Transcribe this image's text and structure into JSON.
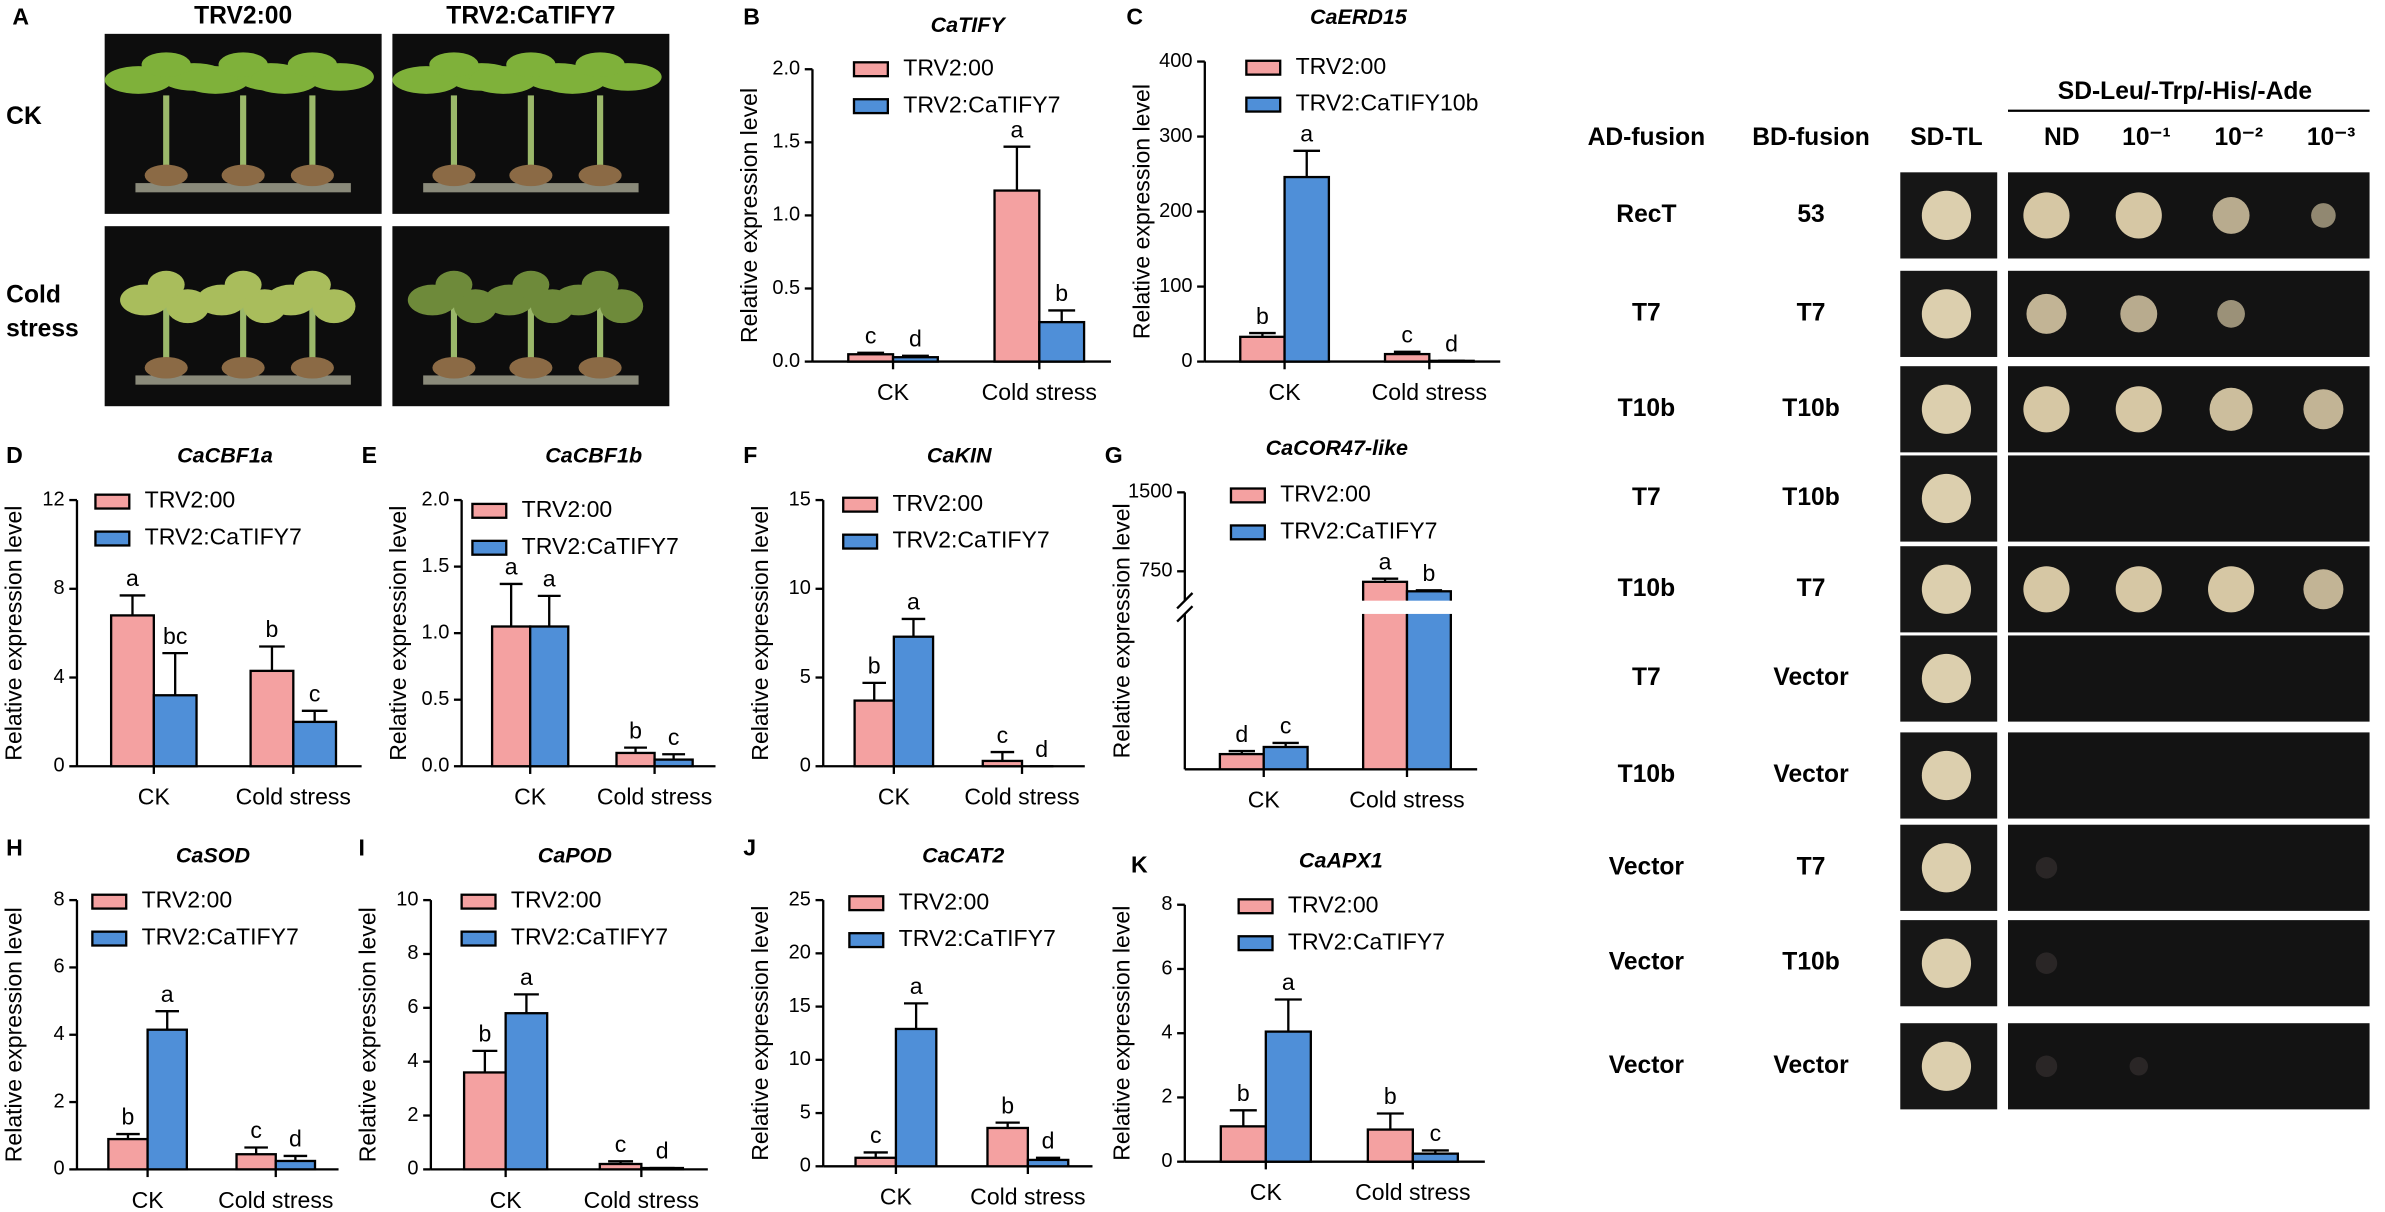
{
  "panel_a": {
    "label": "A",
    "columns": [
      "TRV2:00",
      "TRV2:CaTIFY7"
    ],
    "rows": [
      "CK",
      "Cold stress"
    ]
  },
  "y2h": {
    "selection_header": "SD-Leu/-Trp/-His/-Ade",
    "columns": [
      "AD-fusion",
      "BD-fusion",
      "SD-TL",
      "ND",
      "10⁻¹",
      "10⁻²",
      "10⁻³"
    ],
    "rows": [
      [
        "RecT",
        "53"
      ],
      [
        "T7",
        "T7"
      ],
      [
        "T10b",
        "T10b"
      ],
      [
        "T7",
        "T10b"
      ],
      [
        "T10b",
        "T7"
      ],
      [
        "T7",
        "Vector"
      ],
      [
        "T10b",
        "Vector"
      ],
      [
        "Vector",
        "T7"
      ],
      [
        "Vector",
        "T10b"
      ],
      [
        "Vector",
        "Vector"
      ]
    ]
  },
  "chart_data": [
    {
      "type": "bar",
      "panel_label": "B",
      "title": "CaTIFY",
      "y_label": "Relative expression level",
      "categories": [
        "CK",
        "Cold stress"
      ],
      "series": [
        {
          "name": "TRV2:00",
          "color": "#f4a1a1",
          "values": [
            0.05,
            1.17
          ],
          "errors": [
            0.01,
            0.3
          ],
          "letters": [
            "c",
            "a"
          ]
        },
        {
          "name": "TRV2:CaTIFY7",
          "color": "#4f8fd8",
          "values": [
            0.03,
            0.27
          ],
          "errors": [
            0.01,
            0.08
          ],
          "letters": [
            "d",
            "b"
          ]
        }
      ],
      "ylim": [
        0,
        2
      ],
      "yticks": [
        {
          "value": 0,
          "label": "0.0"
        },
        0.5,
        {
          "value": 1,
          "label": "1.0"
        },
        1.5,
        {
          "value": 2,
          "label": "2.0"
        }
      ]
    },
    {
      "type": "bar",
      "panel_label": "C",
      "title": "CaERD15",
      "y_label": "Relative expression level",
      "categories": [
        "CK",
        "Cold stress"
      ],
      "series": [
        {
          "name": "TRV2:00",
          "color": "#f4a1a1",
          "values": [
            33,
            10
          ],
          "errors": [
            5,
            3
          ],
          "letters": [
            "b",
            "c"
          ]
        },
        {
          "name": "TRV2:CaTIFY10b",
          "color": "#4f8fd8",
          "values": [
            246,
            1
          ],
          "errors": [
            35,
            0
          ],
          "letters": [
            "a",
            "d"
          ]
        }
      ],
      "ylim": [
        0,
        400
      ],
      "yticks": [
        0,
        100,
        200,
        300,
        400
      ]
    },
    {
      "type": "bar",
      "panel_label": "D",
      "title": "CaCBF1a",
      "y_label": "Relative expression level",
      "categories": [
        "CK",
        "Cold stress"
      ],
      "series": [
        {
          "name": "TRV2:00",
          "color": "#f4a1a1",
          "values": [
            6.8,
            4.3
          ],
          "errors": [
            0.9,
            1.1
          ],
          "letters": [
            "a",
            "b"
          ]
        },
        {
          "name": "TRV2:CaTIFY7",
          "color": "#4f8fd8",
          "values": [
            3.2,
            2.0
          ],
          "errors": [
            1.9,
            0.5
          ],
          "letters": [
            "bc",
            "c"
          ]
        }
      ],
      "ylim": [
        0,
        12
      ],
      "yticks": [
        0,
        4,
        8,
        12
      ]
    },
    {
      "type": "bar",
      "panel_label": "E",
      "title": "CaCBF1b",
      "y_label": "Relative expression level",
      "categories": [
        "CK",
        "Cold stress"
      ],
      "series": [
        {
          "name": "TRV2:00",
          "color": "#f4a1a1",
          "values": [
            1.05,
            0.1
          ],
          "errors": [
            0.32,
            0.04
          ],
          "letters": [
            "a",
            "b"
          ]
        },
        {
          "name": "TRV2:CaTIFY7",
          "color": "#4f8fd8",
          "values": [
            1.05,
            0.05
          ],
          "errors": [
            0.23,
            0.04
          ],
          "letters": [
            "a",
            "c"
          ]
        }
      ],
      "ylim": [
        0,
        2
      ],
      "yticks": [
        {
          "value": 0,
          "label": "0.0"
        },
        0.5,
        {
          "value": 1,
          "label": "1.0"
        },
        1.5,
        {
          "value": 2,
          "label": "2.0"
        }
      ]
    },
    {
      "type": "bar",
      "panel_label": "F",
      "title": "CaKIN",
      "y_label": "Relative expression level",
      "categories": [
        "CK",
        "Cold stress"
      ],
      "series": [
        {
          "name": "TRV2:00",
          "color": "#f4a1a1",
          "values": [
            3.7,
            0.3
          ],
          "errors": [
            1.0,
            0.5
          ],
          "letters": [
            "b",
            "c"
          ]
        },
        {
          "name": "TRV2:CaTIFY7",
          "color": "#4f8fd8",
          "values": [
            7.3,
            0
          ],
          "errors": [
            1.0,
            0
          ],
          "letters": [
            "a",
            "d"
          ]
        }
      ],
      "ylim": [
        0,
        15
      ],
      "yticks": [
        0,
        5,
        10,
        15
      ]
    },
    {
      "type": "bar",
      "panel_label": "G",
      "title": "CaCOR47-like",
      "y_label": "Relative expression level",
      "categories": [
        "CK",
        "Cold stress"
      ],
      "series": [
        {
          "name": "TRV2:00",
          "color": "#f4a1a1",
          "values": [
            15,
            650
          ],
          "errors": [
            3,
            30
          ],
          "letters": [
            "d",
            "a"
          ]
        },
        {
          "name": "TRV2:CaTIFY7",
          "color": "#4f8fd8",
          "values": [
            22,
            560
          ],
          "errors": [
            4,
            10
          ],
          "letters": [
            "c",
            "b"
          ]
        }
      ],
      "ylim": [
        0,
        1500
      ],
      "yticks": [
        750,
        1500
      ],
      "axis_break": [
        150,
        500
      ]
    },
    {
      "type": "bar",
      "panel_label": "H",
      "title": "CaSOD",
      "y_label": "Relative expression level",
      "categories": [
        "CK",
        "Cold stress"
      ],
      "series": [
        {
          "name": "TRV2:00",
          "color": "#f4a1a1",
          "values": [
            0.9,
            0.45
          ],
          "errors": [
            0.15,
            0.2
          ],
          "letters": [
            "b",
            "c"
          ]
        },
        {
          "name": "TRV2:CaTIFY7",
          "color": "#4f8fd8",
          "values": [
            4.15,
            0.25
          ],
          "errors": [
            0.55,
            0.15
          ],
          "letters": [
            "a",
            "d"
          ]
        }
      ],
      "ylim": [
        0,
        8
      ],
      "yticks": [
        0,
        2,
        4,
        6,
        8
      ]
    },
    {
      "type": "bar",
      "panel_label": "I",
      "title": "CaPOD",
      "y_label": "Relative expression level",
      "categories": [
        "CK",
        "Cold stress"
      ],
      "series": [
        {
          "name": "TRV2:00",
          "color": "#f4a1a1",
          "values": [
            3.6,
            0.2
          ],
          "errors": [
            0.8,
            0.1
          ],
          "letters": [
            "b",
            "c"
          ]
        },
        {
          "name": "TRV2:CaTIFY7",
          "color": "#4f8fd8",
          "values": [
            5.8,
            0.05
          ],
          "errors": [
            0.7,
            0
          ],
          "letters": [
            "a",
            "d"
          ]
        }
      ],
      "ylim": [
        0,
        10
      ],
      "yticks": [
        0,
        2,
        4,
        6,
        8,
        10
      ]
    },
    {
      "type": "bar",
      "panel_label": "J",
      "title": "CaCAT2",
      "y_label": "Relative expression level",
      "categories": [
        "CK",
        "Cold stress"
      ],
      "series": [
        {
          "name": "TRV2:00",
          "color": "#f4a1a1",
          "values": [
            0.8,
            3.6
          ],
          "errors": [
            0.5,
            0.5
          ],
          "letters": [
            "c",
            "b"
          ]
        },
        {
          "name": "TRV2:CaTIFY7",
          "color": "#4f8fd8",
          "values": [
            12.9,
            0.6
          ],
          "errors": [
            2.4,
            0.2
          ],
          "letters": [
            "a",
            "d"
          ]
        }
      ],
      "ylim": [
        0,
        25
      ],
      "yticks": [
        0,
        5,
        10,
        15,
        20,
        25
      ]
    },
    {
      "type": "bar",
      "panel_label": "K",
      "title": "CaAPX1",
      "y_label": "Relative expression level",
      "categories": [
        "CK",
        "Cold stress"
      ],
      "series": [
        {
          "name": "TRV2:00",
          "color": "#f4a1a1",
          "values": [
            1.1,
            1.0
          ],
          "errors": [
            0.5,
            0.5
          ],
          "letters": [
            "b",
            "b"
          ]
        },
        {
          "name": "TRV2:CaTIFY7",
          "color": "#4f8fd8",
          "values": [
            4.05,
            0.25
          ],
          "errors": [
            1.0,
            0.1
          ],
          "letters": [
            "a",
            "c"
          ]
        }
      ],
      "ylim": [
        0,
        8
      ],
      "yticks": [
        0,
        2,
        4,
        6,
        8
      ]
    }
  ]
}
